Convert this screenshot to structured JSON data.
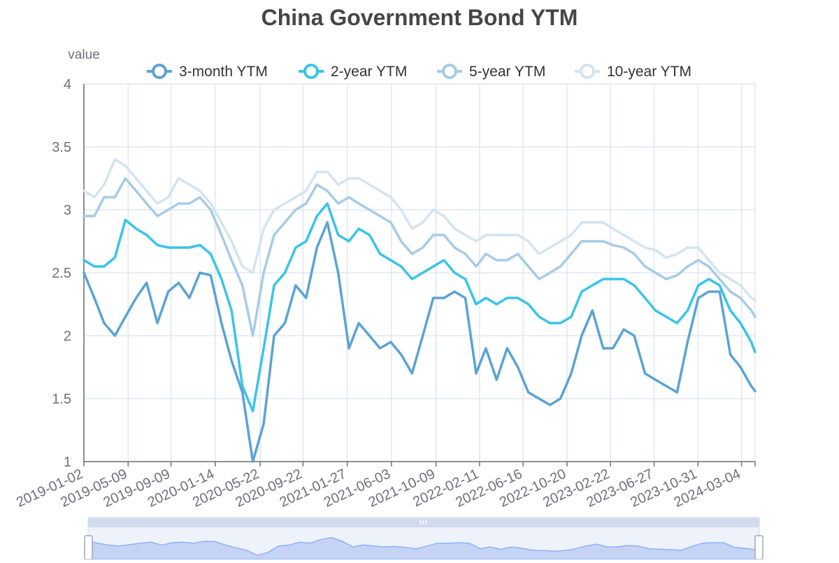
{
  "chart_data": {
    "type": "line",
    "title": "China Government Bond YTM",
    "ylabel": "value",
    "ylim": [
      1,
      4
    ],
    "yticks": [
      "1",
      "1.5",
      "2",
      "2.5",
      "3",
      "3.5",
      "4"
    ],
    "xlim": [
      "2019-01-02",
      "2024-04-12"
    ],
    "xticks": [
      "2019-01-02",
      "2019-05-09",
      "2019-09-09",
      "2020-01-14",
      "2020-05-22",
      "2020-09-22",
      "2021-01-27",
      "2021-06-03",
      "2021-10-09",
      "2022-02-11",
      "2022-06-16",
      "2022-10-20",
      "2023-02-22",
      "2023-06-27",
      "2023-10-31",
      "2024-03-04"
    ],
    "grid": true,
    "legend_position": "top-center",
    "series": [
      {
        "name": "3-month YTM",
        "color": "#5ba3d4",
        "x": [
          "2019-01-02",
          "2019-02-01",
          "2019-03-01",
          "2019-04-01",
          "2019-05-01",
          "2019-06-01",
          "2019-07-01",
          "2019-08-01",
          "2019-09-01",
          "2019-10-01",
          "2019-11-01",
          "2019-12-01",
          "2020-01-01",
          "2020-02-01",
          "2020-03-01",
          "2020-04-01",
          "2020-05-01",
          "2020-06-01",
          "2020-07-01",
          "2020-08-01",
          "2020-09-01",
          "2020-10-01",
          "2020-11-01",
          "2020-12-01",
          "2021-01-01",
          "2021-02-01",
          "2021-03-01",
          "2021-04-01",
          "2021-05-01",
          "2021-06-01",
          "2021-07-01",
          "2021-08-01",
          "2021-09-01",
          "2021-10-01",
          "2021-11-01",
          "2021-12-01",
          "2022-01-01",
          "2022-02-01",
          "2022-03-01",
          "2022-04-01",
          "2022-05-01",
          "2022-06-01",
          "2022-07-01",
          "2022-08-01",
          "2022-09-01",
          "2022-10-01",
          "2022-11-01",
          "2022-12-01",
          "2023-01-01",
          "2023-02-01",
          "2023-03-01",
          "2023-04-01",
          "2023-05-01",
          "2023-06-01",
          "2023-07-01",
          "2023-08-01",
          "2023-09-01",
          "2023-10-01",
          "2023-11-01",
          "2023-12-01",
          "2024-01-01",
          "2024-02-01",
          "2024-03-01",
          "2024-04-01",
          "2024-04-12"
        ],
        "values": [
          2.5,
          2.3,
          2.1,
          2.0,
          2.15,
          2.3,
          2.42,
          2.1,
          2.35,
          2.42,
          2.3,
          2.5,
          2.48,
          2.1,
          1.8,
          1.55,
          1.0,
          1.3,
          2.0,
          2.1,
          2.4,
          2.3,
          2.7,
          2.9,
          2.5,
          1.9,
          2.1,
          2.0,
          1.9,
          1.95,
          1.85,
          1.7,
          2.0,
          2.3,
          2.3,
          2.35,
          2.3,
          1.7,
          1.9,
          1.65,
          1.9,
          1.75,
          1.55,
          1.5,
          1.45,
          1.5,
          1.7,
          2.0,
          2.2,
          1.9,
          1.9,
          2.05,
          2.0,
          1.7,
          1.65,
          1.6,
          1.55,
          1.95,
          2.3,
          2.35,
          2.35,
          1.85,
          1.75,
          1.6,
          1.56
        ]
      },
      {
        "name": "2-year YTM",
        "color": "#39c4e8",
        "x": [
          "2019-01-02",
          "2019-02-01",
          "2019-03-01",
          "2019-04-01",
          "2019-05-01",
          "2019-06-01",
          "2019-07-01",
          "2019-08-01",
          "2019-09-01",
          "2019-10-01",
          "2019-11-01",
          "2019-12-01",
          "2020-01-01",
          "2020-02-01",
          "2020-03-01",
          "2020-04-01",
          "2020-05-01",
          "2020-06-01",
          "2020-07-01",
          "2020-08-01",
          "2020-09-01",
          "2020-10-01",
          "2020-11-01",
          "2020-12-01",
          "2021-01-01",
          "2021-02-01",
          "2021-03-01",
          "2021-04-01",
          "2021-05-01",
          "2021-06-01",
          "2021-07-01",
          "2021-08-01",
          "2021-09-01",
          "2021-10-01",
          "2021-11-01",
          "2021-12-01",
          "2022-01-01",
          "2022-02-01",
          "2022-03-01",
          "2022-04-01",
          "2022-05-01",
          "2022-06-01",
          "2022-07-01",
          "2022-08-01",
          "2022-09-01",
          "2022-10-01",
          "2022-11-01",
          "2022-12-01",
          "2023-01-01",
          "2023-02-01",
          "2023-03-01",
          "2023-04-01",
          "2023-05-01",
          "2023-06-01",
          "2023-07-01",
          "2023-08-01",
          "2023-09-01",
          "2023-10-01",
          "2023-11-01",
          "2023-12-01",
          "2024-01-01",
          "2024-02-01",
          "2024-03-01",
          "2024-04-01",
          "2024-04-12"
        ],
        "values": [
          2.6,
          2.55,
          2.55,
          2.62,
          2.92,
          2.85,
          2.8,
          2.72,
          2.7,
          2.7,
          2.7,
          2.72,
          2.65,
          2.45,
          2.2,
          1.6,
          1.4,
          1.9,
          2.4,
          2.5,
          2.7,
          2.75,
          2.95,
          3.05,
          2.8,
          2.75,
          2.85,
          2.8,
          2.65,
          2.6,
          2.55,
          2.45,
          2.5,
          2.55,
          2.6,
          2.5,
          2.45,
          2.25,
          2.3,
          2.25,
          2.3,
          2.3,
          2.25,
          2.15,
          2.1,
          2.1,
          2.15,
          2.35,
          2.4,
          2.45,
          2.45,
          2.45,
          2.4,
          2.3,
          2.2,
          2.15,
          2.1,
          2.2,
          2.4,
          2.45,
          2.4,
          2.2,
          2.1,
          1.95,
          1.87
        ]
      },
      {
        "name": "5-year YTM",
        "color": "#a6cbe6",
        "x": [
          "2019-01-02",
          "2019-02-01",
          "2019-03-01",
          "2019-04-01",
          "2019-05-01",
          "2019-06-01",
          "2019-07-01",
          "2019-08-01",
          "2019-09-01",
          "2019-10-01",
          "2019-11-01",
          "2019-12-01",
          "2020-01-01",
          "2020-02-01",
          "2020-03-01",
          "2020-04-01",
          "2020-05-01",
          "2020-06-01",
          "2020-07-01",
          "2020-08-01",
          "2020-09-01",
          "2020-10-01",
          "2020-11-01",
          "2020-12-01",
          "2021-01-01",
          "2021-02-01",
          "2021-03-01",
          "2021-04-01",
          "2021-05-01",
          "2021-06-01",
          "2021-07-01",
          "2021-08-01",
          "2021-09-01",
          "2021-10-01",
          "2021-11-01",
          "2021-12-01",
          "2022-01-01",
          "2022-02-01",
          "2022-03-01",
          "2022-04-01",
          "2022-05-01",
          "2022-06-01",
          "2022-07-01",
          "2022-08-01",
          "2022-09-01",
          "2022-10-01",
          "2022-11-01",
          "2022-12-01",
          "2023-01-01",
          "2023-02-01",
          "2023-03-01",
          "2023-04-01",
          "2023-05-01",
          "2023-06-01",
          "2023-07-01",
          "2023-08-01",
          "2023-09-01",
          "2023-10-01",
          "2023-11-01",
          "2023-12-01",
          "2024-01-01",
          "2024-02-01",
          "2024-03-01",
          "2024-04-01",
          "2024-04-12"
        ],
        "values": [
          2.95,
          2.95,
          3.1,
          3.1,
          3.25,
          3.15,
          3.05,
          2.95,
          3.0,
          3.05,
          3.05,
          3.1,
          3.0,
          2.8,
          2.6,
          2.4,
          2.0,
          2.5,
          2.8,
          2.9,
          3.0,
          3.05,
          3.2,
          3.15,
          3.05,
          3.1,
          3.05,
          3.0,
          2.95,
          2.9,
          2.75,
          2.65,
          2.7,
          2.8,
          2.8,
          2.7,
          2.65,
          2.55,
          2.65,
          2.6,
          2.6,
          2.65,
          2.55,
          2.45,
          2.5,
          2.55,
          2.65,
          2.75,
          2.75,
          2.75,
          2.72,
          2.7,
          2.65,
          2.55,
          2.5,
          2.45,
          2.48,
          2.55,
          2.6,
          2.55,
          2.45,
          2.35,
          2.3,
          2.2,
          2.15
        ]
      },
      {
        "name": "10-year YTM",
        "color": "#d3e4ef",
        "x": [
          "2019-01-02",
          "2019-02-01",
          "2019-03-01",
          "2019-04-01",
          "2019-05-01",
          "2019-06-01",
          "2019-07-01",
          "2019-08-01",
          "2019-09-01",
          "2019-10-01",
          "2019-11-01",
          "2019-12-01",
          "2020-01-01",
          "2020-02-01",
          "2020-03-01",
          "2020-04-01",
          "2020-05-01",
          "2020-06-01",
          "2020-07-01",
          "2020-08-01",
          "2020-09-01",
          "2020-10-01",
          "2020-11-01",
          "2020-12-01",
          "2021-01-01",
          "2021-02-01",
          "2021-03-01",
          "2021-04-01",
          "2021-05-01",
          "2021-06-01",
          "2021-07-01",
          "2021-08-01",
          "2021-09-01",
          "2021-10-01",
          "2021-11-01",
          "2021-12-01",
          "2022-01-01",
          "2022-02-01",
          "2022-03-01",
          "2022-04-01",
          "2022-05-01",
          "2022-06-01",
          "2022-07-01",
          "2022-08-01",
          "2022-09-01",
          "2022-10-01",
          "2022-11-01",
          "2022-12-01",
          "2023-01-01",
          "2023-02-01",
          "2023-03-01",
          "2023-04-01",
          "2023-05-01",
          "2023-06-01",
          "2023-07-01",
          "2023-08-01",
          "2023-09-01",
          "2023-10-01",
          "2023-11-01",
          "2023-12-01",
          "2024-01-01",
          "2024-02-01",
          "2024-03-01",
          "2024-04-01",
          "2024-04-12"
        ],
        "values": [
          3.15,
          3.1,
          3.2,
          3.4,
          3.35,
          3.25,
          3.15,
          3.05,
          3.1,
          3.25,
          3.2,
          3.15,
          3.05,
          2.9,
          2.75,
          2.55,
          2.5,
          2.85,
          3.0,
          3.05,
          3.1,
          3.15,
          3.3,
          3.3,
          3.2,
          3.25,
          3.25,
          3.2,
          3.15,
          3.1,
          3.0,
          2.85,
          2.9,
          3.0,
          2.95,
          2.85,
          2.8,
          2.75,
          2.8,
          2.8,
          2.8,
          2.8,
          2.75,
          2.65,
          2.7,
          2.75,
          2.8,
          2.9,
          2.9,
          2.9,
          2.85,
          2.8,
          2.75,
          2.7,
          2.68,
          2.62,
          2.65,
          2.7,
          2.7,
          2.6,
          2.5,
          2.45,
          2.4,
          2.3,
          2.28
        ]
      }
    ]
  }
}
